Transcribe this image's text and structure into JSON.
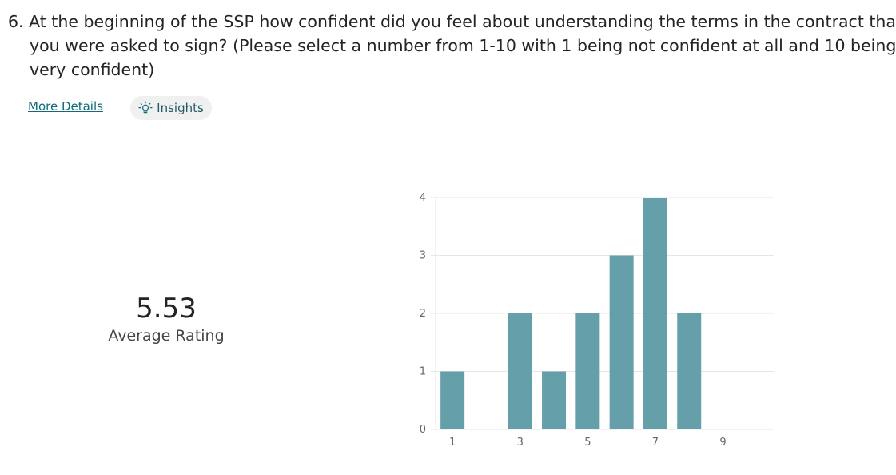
{
  "question": {
    "line1": "6. At the beginning of the SSP how confident did you feel about understanding the terms in the contract tha",
    "line2": "you were asked to sign? (Please select a number from 1-10 with 1 being not confident at all and 10 being",
    "line3": "very confident)"
  },
  "actions": {
    "more_details": "More Details",
    "insights": "Insights",
    "insights_icon": "lightbulb-icon"
  },
  "summary": {
    "value": "5.53",
    "label": "Average Rating"
  },
  "colors": {
    "bar": "#659fa9",
    "link": "#0f6a7a",
    "grid": "#e6e6e6"
  },
  "chart_data": {
    "type": "bar",
    "categories": [
      "1",
      "2",
      "3",
      "4",
      "5",
      "6",
      "7",
      "8",
      "9",
      "10"
    ],
    "values": [
      1,
      0,
      2,
      1,
      2,
      3,
      4,
      2,
      0,
      0
    ],
    "x_tick_labels": [
      "1",
      "3",
      "5",
      "7",
      "9"
    ],
    "y_ticks": [
      0,
      1,
      2,
      3,
      4
    ],
    "ylim": [
      0,
      4
    ],
    "title": "",
    "xlabel": "",
    "ylabel": "",
    "grid": true,
    "legend": "none"
  }
}
